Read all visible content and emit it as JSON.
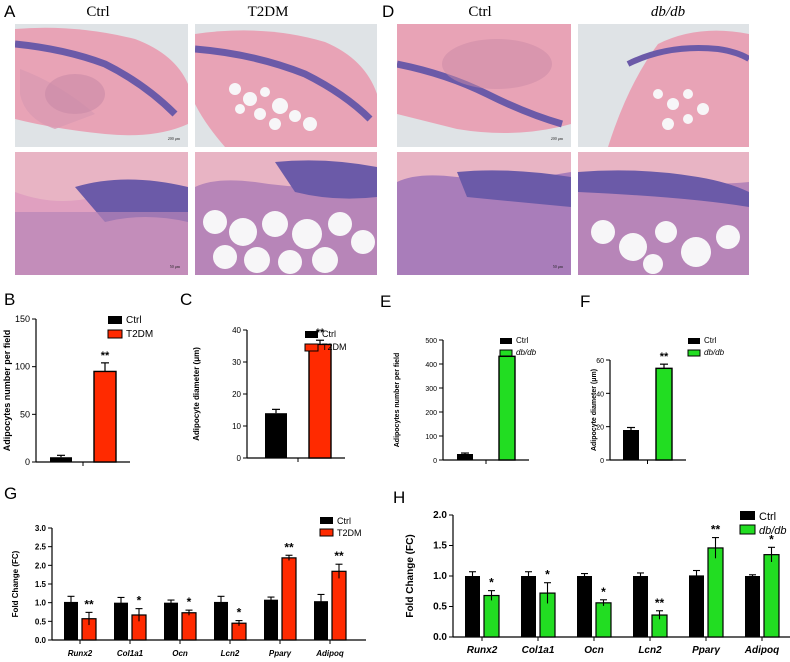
{
  "panel_letters": {
    "A": "A",
    "B": "B",
    "C": "C",
    "D": "D",
    "E": "E",
    "F": "F",
    "G": "G",
    "H": "H"
  },
  "histology": {
    "A": {
      "col1": "Ctrl",
      "col2": "T2DM",
      "scale_top": "200 μm",
      "scale_bottom": "50 μm"
    },
    "D": {
      "col1": "Ctrl",
      "col2": "db/db",
      "scale_top": "200 μm",
      "scale_bottom": "50 μm"
    },
    "colors": {
      "stain_pink": "#e8a3b6",
      "stain_purple": "#6b5aa8",
      "background": "#dfe3e6",
      "fat_white": "#f7f6f8"
    }
  },
  "colors": {
    "ctrl": "#000000",
    "t2dm": "#ff2a00",
    "dbdb": "#22dd22"
  },
  "chart_data": [
    {
      "id": "B",
      "type": "bar",
      "categories": [
        "Ctrl",
        "T2DM"
      ],
      "values": [
        5,
        95
      ],
      "errors": [
        2,
        9
      ],
      "ylabel": "Adipocytes number per field",
      "ylim": [
        0,
        150
      ],
      "yticks": [
        0,
        50,
        100,
        150
      ],
      "legend": [
        "Ctrl",
        "T2DM"
      ],
      "legend_position": "top-right",
      "significance": "**",
      "colors": [
        "#000000",
        "#ff2a00"
      ]
    },
    {
      "id": "C",
      "type": "bar",
      "categories": [
        "Ctrl",
        "T2DM"
      ],
      "values": [
        14,
        35.5
      ],
      "errors": [
        1.2,
        1.3
      ],
      "ylabel": "Adipocyte diameter (μm)",
      "ylim": [
        0,
        40
      ],
      "yticks": [
        0,
        10,
        20,
        30,
        40
      ],
      "legend": [
        "Ctrl",
        "T2DM"
      ],
      "legend_position": "top-right",
      "significance": "**",
      "colors": [
        "#000000",
        "#ff2a00"
      ]
    },
    {
      "id": "E",
      "type": "bar",
      "categories": [
        "Ctrl",
        "db/db"
      ],
      "values": [
        25,
        432
      ],
      "errors": [
        4,
        24
      ],
      "ylabel": "Adipocytes number per field",
      "ylim": [
        0,
        500
      ],
      "yticks": [
        0,
        100,
        200,
        300,
        400,
        500
      ],
      "legend": [
        "Ctrl",
        "db/db"
      ],
      "legend_position": "top-right",
      "significance": "**",
      "colors": [
        "#000000",
        "#22dd22"
      ]
    },
    {
      "id": "F",
      "type": "bar",
      "categories": [
        "Ctrl",
        "db/db"
      ],
      "values": [
        18,
        55
      ],
      "errors": [
        1.5,
        2.5
      ],
      "ylabel": "Adipocyte diameter (μm)",
      "ylim": [
        0,
        60
      ],
      "yticks": [
        0,
        20,
        40,
        60
      ],
      "legend": [
        "Ctrl",
        "db/db"
      ],
      "legend_position": "top-right",
      "significance": "**",
      "colors": [
        "#000000",
        "#22dd22"
      ]
    },
    {
      "id": "G",
      "type": "bar",
      "categories": [
        "Runx2",
        "Col1a1",
        "Ocn",
        "Lcn2",
        "Pparγ",
        "Adipoq"
      ],
      "series": [
        {
          "name": "Ctrl",
          "values": [
            1.02,
            1.0,
            1.0,
            1.02,
            1.08,
            1.04
          ],
          "errors": [
            0.15,
            0.14,
            0.07,
            0.15,
            0.07,
            0.18
          ]
        },
        {
          "name": "T2DM",
          "values": [
            0.57,
            0.67,
            0.73,
            0.45,
            2.2,
            1.84
          ],
          "errors": [
            0.17,
            0.17,
            0.07,
            0.07,
            0.07,
            0.19
          ]
        }
      ],
      "significance": [
        "**",
        "*",
        "*",
        "*",
        "**",
        "**"
      ],
      "ylabel": "Fold Change (FC)",
      "ylim": [
        0,
        3.0
      ],
      "yticks": [
        0,
        0.5,
        1.0,
        1.5,
        2.0,
        2.5,
        3.0
      ],
      "legend_position": "top-right",
      "colors": [
        "#000000",
        "#ff2a00"
      ]
    },
    {
      "id": "H",
      "type": "bar",
      "categories": [
        "Runx2",
        "Col1a1",
        "Ocn",
        "Lcn2",
        "Pparγ",
        "Adipoq"
      ],
      "series": [
        {
          "name": "Ctrl",
          "values": [
            1.0,
            1.0,
            1.0,
            1.0,
            1.01,
            1.0
          ],
          "errors": [
            0.07,
            0.07,
            0.04,
            0.05,
            0.08,
            0.02
          ]
        },
        {
          "name": "db/db",
          "values": [
            0.68,
            0.72,
            0.56,
            0.36,
            1.46,
            1.35
          ],
          "errors": [
            0.08,
            0.17,
            0.05,
            0.07,
            0.17,
            0.12
          ]
        }
      ],
      "significance": [
        "*",
        "*",
        "*",
        "**",
        "**",
        "*"
      ],
      "ylabel": "Fold Change (FC)",
      "ylim": [
        0,
        2.0
      ],
      "yticks": [
        0,
        0.5,
        1.0,
        1.5,
        2.0
      ],
      "legend_position": "top-right",
      "colors": [
        "#000000",
        "#22dd22"
      ]
    }
  ]
}
